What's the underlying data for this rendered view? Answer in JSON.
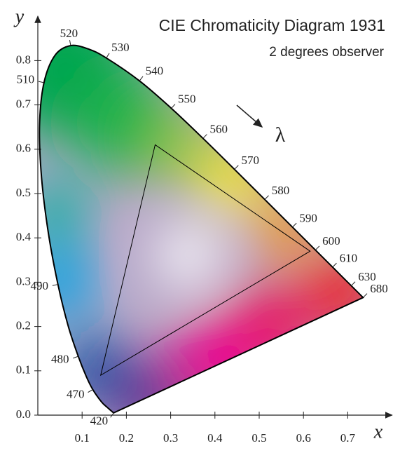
{
  "chart_data": {
    "type": "chromaticity",
    "title": "CIE Chromaticity Diagram 1931",
    "subtitle": "2 degrees observer",
    "x_label": "x",
    "y_label": "y",
    "annotation": "λ",
    "xlim": [
      0,
      0.8
    ],
    "ylim": [
      0,
      0.9
    ],
    "xticks": [
      0.1,
      0.2,
      0.3,
      0.4,
      0.5,
      0.6,
      0.7
    ],
    "yticks": [
      {
        "value": 0,
        "label": "0.0"
      },
      0.1,
      0.2,
      0.3,
      0.4,
      0.5,
      0.6,
      0.7,
      0.8
    ],
    "locus": {
      "color": "#000000",
      "x": [
        0.1714,
        0.1689,
        0.1644,
        0.1566,
        0.144,
        0.1241,
        0.1096,
        0.0913,
        0.0687,
        0.0454,
        0.0235,
        0.0082,
        0.0039,
        0.0139,
        0.0389,
        0.0743,
        0.1142,
        0.1547,
        0.2296,
        0.3016,
        0.3731,
        0.4441,
        0.5125,
        0.5752,
        0.627,
        0.6658,
        0.6915,
        0.7079,
        0.7347
      ],
      "y": [
        0.0051,
        0.0069,
        0.0109,
        0.0177,
        0.0297,
        0.0578,
        0.0868,
        0.1327,
        0.2007,
        0.295,
        0.4127,
        0.5384,
        0.6548,
        0.7502,
        0.812,
        0.8338,
        0.8262,
        0.8059,
        0.7543,
        0.6923,
        0.6245,
        0.5547,
        0.4866,
        0.4242,
        0.3725,
        0.334,
        0.3083,
        0.292,
        0.2653
      ],
      "labels": [
        420,
        null,
        null,
        null,
        null,
        470,
        null,
        480,
        null,
        490,
        null,
        null,
        null,
        510,
        null,
        520,
        null,
        530,
        540,
        550,
        560,
        570,
        580,
        590,
        600,
        610,
        null,
        630,
        680
      ]
    },
    "gamut": {
      "color": "#000000",
      "x": [
        0.615,
        0.265,
        0.142
      ],
      "y": [
        0.37,
        0.61,
        0.09
      ]
    }
  }
}
